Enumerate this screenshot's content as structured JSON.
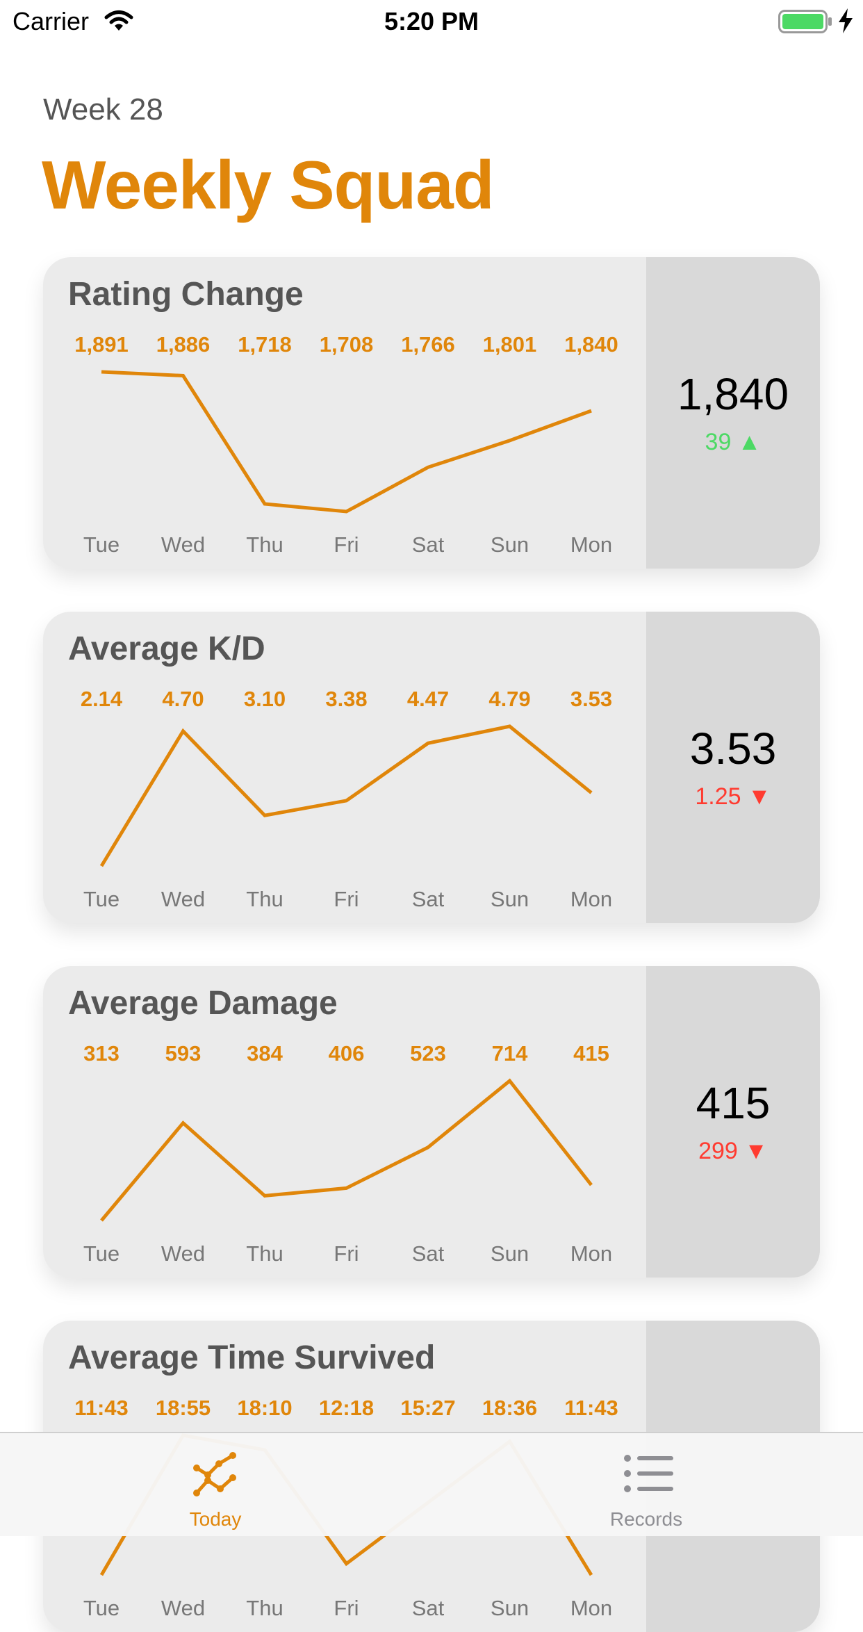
{
  "status_bar": {
    "carrier": "Carrier",
    "time": "5:20 PM"
  },
  "header": {
    "week": "Week 28",
    "title": "Weekly Squad"
  },
  "colors": {
    "accent": "#E0860A",
    "up": "#4CD964",
    "down": "#FF3B30",
    "card": "#ebebeb",
    "side": "#d9d9d9"
  },
  "cards": [
    {
      "title": "Rating Change",
      "value": "1,840",
      "delta": "39 ▲",
      "trend": "up",
      "chart_data": {
        "type": "line",
        "categories": [
          "Tue",
          "Wed",
          "Thu",
          "Fri",
          "Sat",
          "Sun",
          "Mon"
        ],
        "labels": [
          "1,891",
          "1,886",
          "1,718",
          "1,708",
          "1,766",
          "1,801",
          "1,840"
        ],
        "values": [
          1891,
          1886,
          1718,
          1708,
          1766,
          1801,
          1840
        ]
      }
    },
    {
      "title": "Average K/D",
      "value": "3.53",
      "delta": "1.25 ▼",
      "trend": "down",
      "chart_data": {
        "type": "line",
        "categories": [
          "Tue",
          "Wed",
          "Thu",
          "Fri",
          "Sat",
          "Sun",
          "Mon"
        ],
        "labels": [
          "2.14",
          "4.70",
          "3.10",
          "3.38",
          "4.47",
          "4.79",
          "3.53"
        ],
        "values": [
          2.14,
          4.7,
          3.1,
          3.38,
          4.47,
          4.79,
          3.53
        ]
      }
    },
    {
      "title": "Average Damage",
      "value": "415",
      "delta": "299 ▼",
      "trend": "down",
      "chart_data": {
        "type": "line",
        "categories": [
          "Tue",
          "Wed",
          "Thu",
          "Fri",
          "Sat",
          "Sun",
          "Mon"
        ],
        "labels": [
          "313",
          "593",
          "384",
          "406",
          "523",
          "714",
          "415"
        ],
        "values": [
          313,
          593,
          384,
          406,
          523,
          714,
          415
        ]
      }
    },
    {
      "title": "Average Time Survived",
      "value": "",
      "delta": "",
      "trend": "",
      "chart_data": {
        "type": "line",
        "categories": [
          "Tue",
          "Wed",
          "Thu",
          "Fri",
          "Sat",
          "Sun",
          "Mon"
        ],
        "labels": [
          "11:43",
          "18:55",
          "18:10",
          "12:18",
          "15:27",
          "18:36",
          "11:43"
        ],
        "values": [
          703,
          1135,
          1090,
          738,
          927,
          1116,
          703
        ]
      }
    }
  ],
  "tabs": [
    {
      "label": "Today",
      "icon": "chart-line-icon",
      "active": true
    },
    {
      "label": "Records",
      "icon": "list-icon",
      "active": false
    }
  ]
}
